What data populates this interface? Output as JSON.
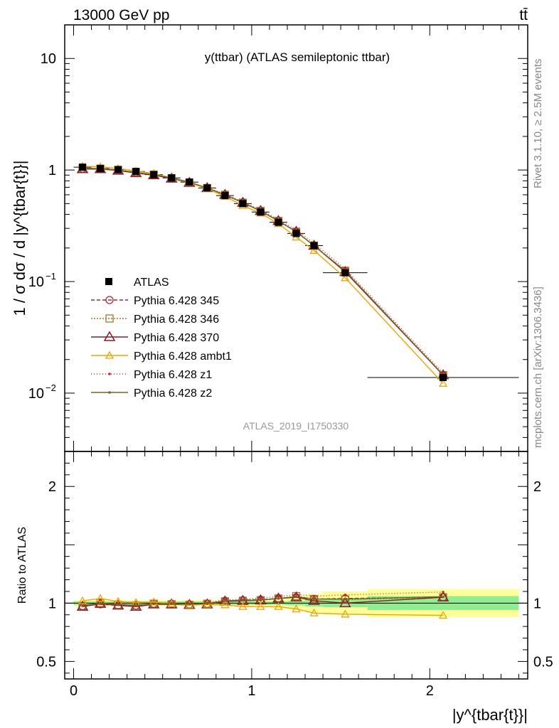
{
  "header": {
    "left": "13000 GeV pp",
    "right": "tt̄"
  },
  "side_labels": {
    "top": "Rivet 3.1.10, ≥ 2.5M events",
    "bottom": "mcplots.cern.ch [arXiv:1306.3436]"
  },
  "chart_data": [
    {
      "type": "line",
      "title": "y(ttbar) (ATLAS semileptonic ttbar)",
      "watermark": "ATLAS_2019_I1750330",
      "ylabel": "1 / σ dσ / d |y^{tbar{t}}|",
      "yscale": "log",
      "ylim": [
        0.003,
        20
      ],
      "xlim": [
        -0.05,
        2.55
      ],
      "yticks": [
        {
          "v": 0.01,
          "base": "10",
          "exp": "−2"
        },
        {
          "v": 0.1,
          "base": "10",
          "exp": "−1"
        },
        {
          "v": 1,
          "base": "1",
          "exp": ""
        },
        {
          "v": 10,
          "base": "10",
          "exp": ""
        }
      ],
      "x": [
        0.05,
        0.15,
        0.25,
        0.35,
        0.45,
        0.55,
        0.65,
        0.75,
        0.85,
        0.95,
        1.05,
        1.15,
        1.25,
        1.35,
        1.525,
        2.075
      ],
      "xedges": [
        0,
        0.1,
        0.2,
        0.3,
        0.4,
        0.5,
        0.6,
        0.7,
        0.8,
        0.9,
        1.0,
        1.1,
        1.2,
        1.3,
        1.4,
        1.65,
        2.5
      ],
      "legend_position": "left-middle",
      "series": [
        {
          "name": "ATLAS",
          "color": "#000000",
          "marker": "square",
          "dash": "",
          "values": [
            1.06,
            1.03,
            1.01,
            0.97,
            0.91,
            0.85,
            0.78,
            0.69,
            0.59,
            0.5,
            0.42,
            0.34,
            0.27,
            0.21,
            0.12,
            0.0138
          ]
        },
        {
          "name": "Pythia 6.428 345",
          "color": "#b22234",
          "marker": "circle",
          "dash": "5,3",
          "values": [
            1.03,
            1.02,
            1.0,
            0.95,
            0.91,
            0.84,
            0.77,
            0.69,
            0.6,
            0.51,
            0.43,
            0.35,
            0.28,
            0.21,
            0.125,
            0.0145
          ]
        },
        {
          "name": "Pythia 6.428 346",
          "color": "#a0782a",
          "marker": "square-open",
          "dash": "2,2",
          "values": [
            1.03,
            1.03,
            1.0,
            0.95,
            0.91,
            0.84,
            0.77,
            0.69,
            0.6,
            0.51,
            0.43,
            0.35,
            0.28,
            0.21,
            0.125,
            0.0145
          ]
        },
        {
          "name": "Pythia 6.428 370",
          "color": "#8b1a2b",
          "marker": "triangle-big",
          "dash": "",
          "values": [
            1.02,
            1.02,
            0.99,
            0.94,
            0.9,
            0.84,
            0.77,
            0.69,
            0.6,
            0.51,
            0.43,
            0.35,
            0.28,
            0.21,
            0.122,
            0.0145
          ]
        },
        {
          "name": "Pythia 6.428 ambt1",
          "color": "#f0a500",
          "marker": "triangle",
          "dash": "",
          "values": [
            1.08,
            1.07,
            1.03,
            0.98,
            0.93,
            0.85,
            0.77,
            0.68,
            0.58,
            0.48,
            0.41,
            0.33,
            0.25,
            0.19,
            0.108,
            0.0122
          ]
        },
        {
          "name": "Pythia 6.428 z1",
          "color": "#d9242c",
          "marker": "dot",
          "dash": "1,3",
          "values": [
            1.03,
            1.02,
            1.0,
            0.95,
            0.91,
            0.85,
            0.78,
            0.69,
            0.61,
            0.52,
            0.44,
            0.36,
            0.29,
            0.22,
            0.13,
            0.0151
          ]
        },
        {
          "name": "Pythia 6.428 z2",
          "color": "#6b6b1f",
          "marker": "dot",
          "dash": "",
          "values": [
            1.04,
            1.03,
            1.0,
            0.95,
            0.91,
            0.85,
            0.78,
            0.69,
            0.6,
            0.51,
            0.43,
            0.35,
            0.28,
            0.21,
            0.124,
            0.0146
          ]
        }
      ]
    },
    {
      "type": "line",
      "ylabel": "Ratio to ATLAS",
      "xlabel": "|y^{tbar{t}}|",
      "ylim": [
        0.35,
        2.3
      ],
      "xlim": [
        -0.05,
        2.55
      ],
      "yticks": [
        {
          "v": 0.5,
          "label": "0.5"
        },
        {
          "v": 1,
          "label": "1"
        },
        {
          "v": 2,
          "label": "2"
        }
      ],
      "xticks": [
        {
          "v": 0,
          "label": "0"
        },
        {
          "v": 1,
          "label": "1"
        },
        {
          "v": 2,
          "label": "2"
        }
      ],
      "bands": {
        "xedges": [
          0,
          0.1,
          0.2,
          0.3,
          0.4,
          0.5,
          0.6,
          0.7,
          0.8,
          0.9,
          1.0,
          1.1,
          1.2,
          1.3,
          1.4,
          1.65,
          2.5
        ],
        "inner": [
          0.015,
          0.015,
          0.015,
          0.015,
          0.015,
          0.015,
          0.015,
          0.015,
          0.015,
          0.015,
          0.015,
          0.015,
          0.02,
          0.03,
          0.035,
          0.06
        ],
        "outer": [
          0.025,
          0.025,
          0.025,
          0.025,
          0.025,
          0.025,
          0.025,
          0.025,
          0.025,
          0.03,
          0.035,
          0.045,
          0.06,
          0.08,
          0.1,
          0.12
        ],
        "inner_color": "#90ee90",
        "outer_color": "#ffff99"
      },
      "x": [
        0.05,
        0.15,
        0.25,
        0.35,
        0.45,
        0.55,
        0.65,
        0.75,
        0.85,
        0.95,
        1.05,
        1.15,
        1.25,
        1.35,
        1.525,
        2.075
      ],
      "series": [
        {
          "name": "Pythia 6.428 345",
          "color": "#b22234",
          "marker": "circle",
          "dash": "5,3",
          "values": [
            0.975,
            0.99,
            0.98,
            0.98,
            0.995,
            0.995,
            0.99,
            0.995,
            1.02,
            1.025,
            1.03,
            1.04,
            1.05,
            1.035,
            1.04,
            1.05
          ]
        },
        {
          "name": "Pythia 6.428 346",
          "color": "#a0782a",
          "marker": "square-open",
          "dash": "2,2",
          "values": [
            0.975,
            1.0,
            0.985,
            0.98,
            0.995,
            0.99,
            0.985,
            0.995,
            1.015,
            1.02,
            1.025,
            1.04,
            1.06,
            1.035,
            1.03,
            1.05
          ]
        },
        {
          "name": "Pythia 6.428 370",
          "color": "#8b1a2b",
          "marker": "triangle-big",
          "dash": "",
          "values": [
            0.97,
            0.995,
            0.98,
            0.97,
            0.99,
            0.99,
            0.985,
            0.99,
            1.015,
            1.02,
            1.025,
            1.04,
            1.05,
            1.02,
            1.0,
            1.05
          ]
        },
        {
          "name": "Pythia 6.428 ambt1",
          "color": "#f0a500",
          "marker": "triangle",
          "dash": "",
          "values": [
            1.02,
            1.04,
            1.015,
            1.005,
            1.01,
            0.995,
            0.985,
            0.99,
            0.985,
            0.97,
            0.97,
            0.97,
            0.95,
            0.915,
            0.905,
            0.895
          ]
        },
        {
          "name": "Pythia 6.428 z1",
          "color": "#d9242c",
          "marker": "dot",
          "dash": "1,3",
          "values": [
            0.975,
            0.995,
            0.985,
            0.98,
            0.995,
            1.0,
            0.995,
            1.0,
            1.03,
            1.03,
            1.045,
            1.055,
            1.075,
            1.06,
            1.07,
            1.095
          ]
        },
        {
          "name": "Pythia 6.428 z2",
          "color": "#6b6b1f",
          "marker": "dot",
          "dash": "",
          "values": [
            0.98,
            1.0,
            0.99,
            0.98,
            0.995,
            0.995,
            0.99,
            0.995,
            1.02,
            1.025,
            1.025,
            1.04,
            1.055,
            1.035,
            1.035,
            1.055
          ]
        }
      ]
    }
  ]
}
